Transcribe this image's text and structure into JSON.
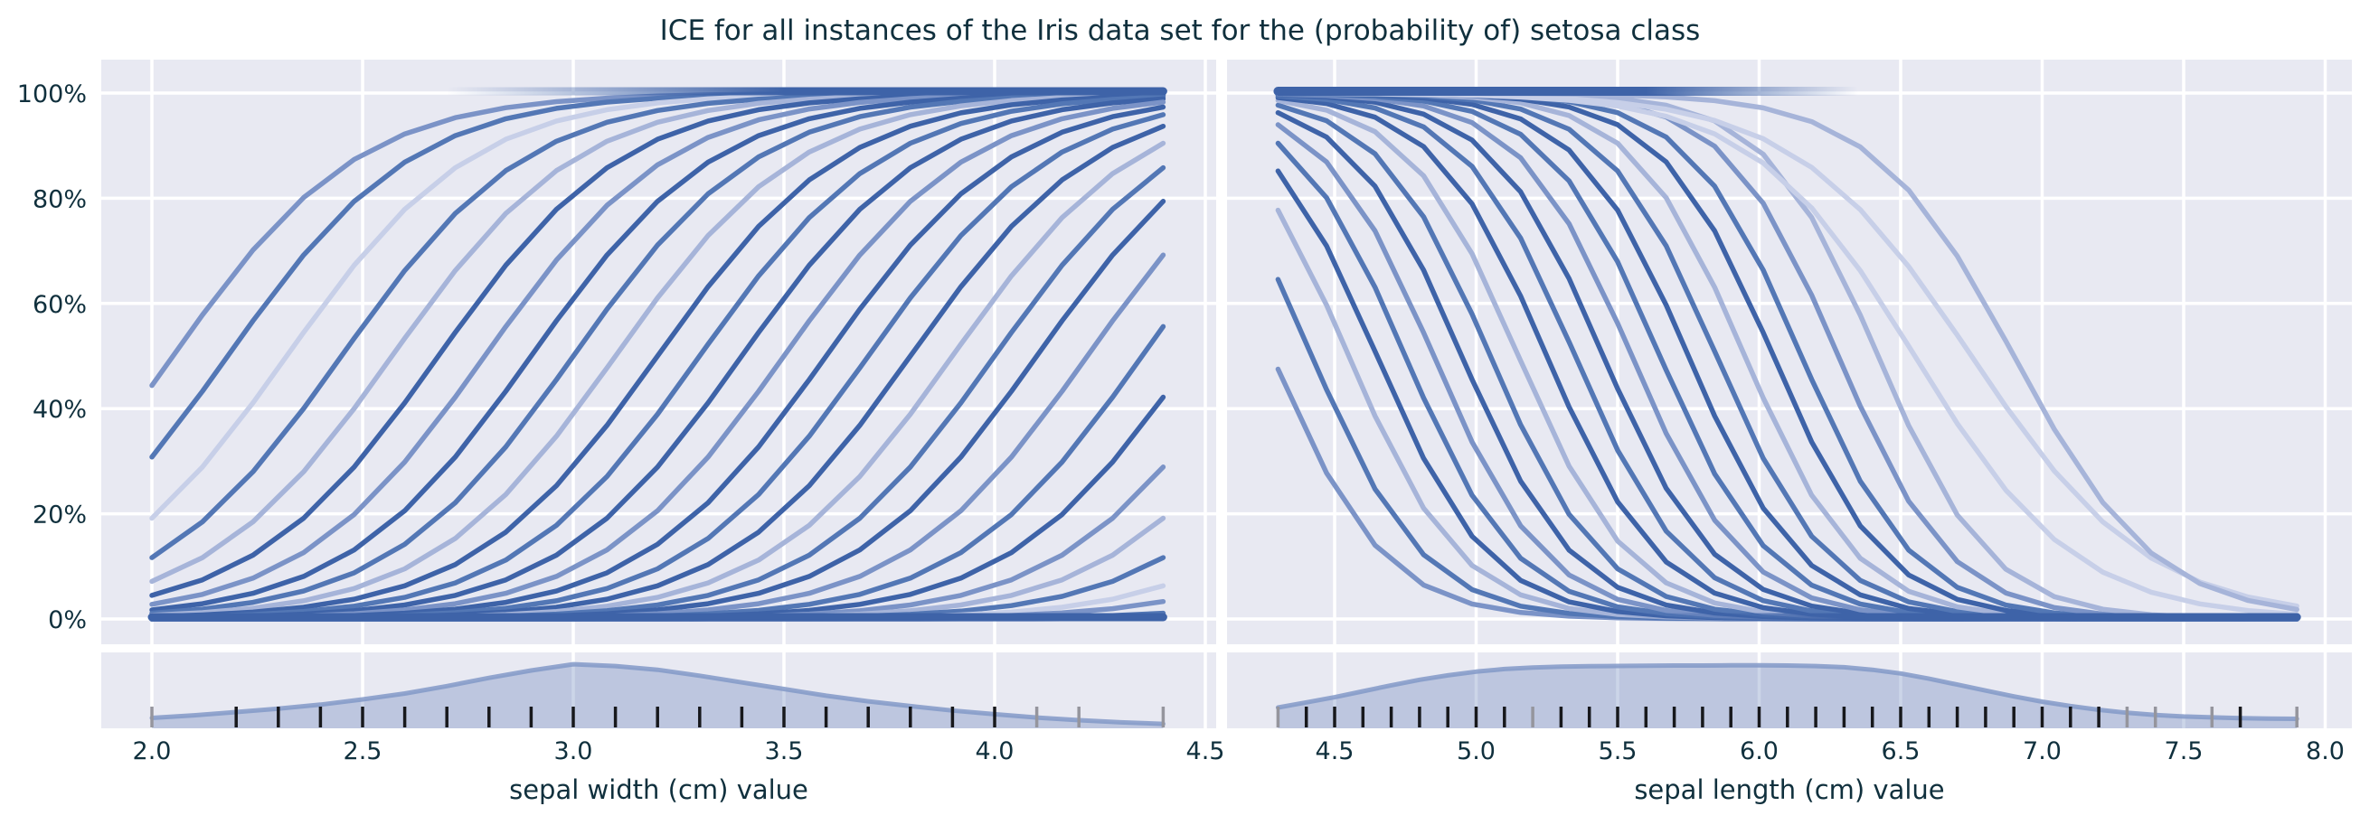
{
  "title": "ICE for all instances of the Iris data set for the (probability of) setosa class",
  "colors": {
    "figure_bg": "#ffffff",
    "panel_bg": "#e8e9f2",
    "grid": "#ffffff",
    "text": "#10303d",
    "line_palette": [
      "#3e63a8",
      "#5377b5",
      "#7b93c7",
      "#a6b4d9",
      "#c7cfe8"
    ],
    "saturation_band": "#3e63a8",
    "kde_fill": "#6e87be",
    "kde_fill_opacity": 0.35,
    "kde_stroke": "#8299c8",
    "kde_stroke_opacity": 0.85,
    "rug_dark": "#17181c",
    "rug_gray": "#95959d"
  },
  "y_axis": {
    "tick_labels": [
      "0%",
      "20%",
      "40%",
      "60%",
      "80%",
      "100%"
    ],
    "tick_values": [
      0,
      20,
      40,
      60,
      80,
      100
    ],
    "unit": "percent probability of setosa class"
  },
  "chart_data": [
    {
      "type": "line",
      "panel": "left",
      "xlabel": "sepal width (cm) value",
      "x_ticks": [
        2.0,
        2.5,
        3.0,
        3.5,
        4.0,
        4.5
      ],
      "x_tick_labels": [
        "2.0",
        "2.5",
        "3.0",
        "3.5",
        "4.0",
        "4.5"
      ],
      "xlim": [
        1.88,
        4.53
      ],
      "ylim_pct": [
        -4.8,
        104.8
      ],
      "data_x_range": [
        2.0,
        4.4
      ],
      "grid": true,
      "legend": "none",
      "curve_model": "p(x) = 100 / (1 + exp(-k*(x - x0)))",
      "k": 4.5,
      "samples": 20,
      "curves": [
        {
          "x0": 2.05,
          "shade": 2
        },
        {
          "x0": 2.18,
          "shade": 1
        },
        {
          "x0": 2.32,
          "shade": 4
        },
        {
          "x0": 2.45,
          "shade": 1
        },
        {
          "x0": 2.57,
          "shade": 3
        },
        {
          "x0": 2.68,
          "shade": 0
        },
        {
          "x0": 2.79,
          "shade": 2
        },
        {
          "x0": 2.9,
          "shade": 0
        },
        {
          "x0": 3.0,
          "shade": 1
        },
        {
          "x0": 3.1,
          "shade": 3
        },
        {
          "x0": 3.2,
          "shade": 0
        },
        {
          "x0": 3.3,
          "shade": 1
        },
        {
          "x0": 3.4,
          "shade": 0
        },
        {
          "x0": 3.5,
          "shade": 2
        },
        {
          "x0": 3.6,
          "shade": 0
        },
        {
          "x0": 3.7,
          "shade": 1
        },
        {
          "x0": 3.8,
          "shade": 0
        },
        {
          "x0": 3.9,
          "shade": 3
        },
        {
          "x0": 4.0,
          "shade": 1
        },
        {
          "x0": 4.1,
          "shade": 0
        },
        {
          "x0": 4.22,
          "shade": 2
        },
        {
          "x0": 4.35,
          "shade": 1
        },
        {
          "x0": 4.47,
          "shade": 0
        },
        {
          "x0": 4.6,
          "shade": 2
        },
        {
          "x0": 4.72,
          "shade": 3
        },
        {
          "x0": 4.85,
          "shade": 1
        },
        {
          "x0": 5.0,
          "shade": 4
        },
        {
          "x0": 5.15,
          "shade": 2
        },
        {
          "x0": 5.4,
          "shade": 1
        },
        {
          "x0": 5.9,
          "shade": 0
        }
      ],
      "saturation_bands": [
        {
          "p": 0,
          "x_start": 2.0,
          "solid_start": 2.0,
          "solid_end": 4.4,
          "x_end": 4.4,
          "width": 9
        },
        {
          "p": 100,
          "x_start": 2.7,
          "solid_start": 3.5,
          "solid_end": 4.4,
          "x_end": 4.4,
          "width": 9
        }
      ],
      "kde": {
        "x": [
          2.0,
          2.1,
          2.2,
          2.3,
          2.4,
          2.5,
          2.6,
          2.7,
          2.8,
          2.9,
          3.0,
          3.1,
          3.2,
          3.3,
          3.4,
          3.5,
          3.6,
          3.7,
          3.8,
          3.9,
          4.0,
          4.1,
          4.2,
          4.3,
          4.4
        ],
        "height": [
          0.14,
          0.175,
          0.22,
          0.265,
          0.32,
          0.39,
          0.47,
          0.57,
          0.68,
          0.78,
          0.865,
          0.84,
          0.79,
          0.71,
          0.62,
          0.53,
          0.44,
          0.365,
          0.3,
          0.24,
          0.19,
          0.145,
          0.11,
          0.08,
          0.06
        ]
      },
      "rug": {
        "values": [
          2.0,
          2.2,
          2.3,
          2.4,
          2.5,
          2.6,
          2.7,
          2.8,
          2.9,
          3.0,
          3.1,
          3.2,
          3.3,
          3.4,
          3.5,
          3.6,
          3.7,
          3.8,
          3.9,
          4.0,
          4.1,
          4.2,
          4.4
        ],
        "gray": [
          2.0,
          4.1,
          4.2,
          4.4
        ]
      }
    },
    {
      "type": "line",
      "panel": "right",
      "xlabel": "sepal length (cm) value",
      "x_ticks": [
        4.5,
        5.0,
        5.5,
        6.0,
        6.5,
        7.0,
        7.5,
        8.0
      ],
      "x_tick_labels": [
        "4.5",
        "5.0",
        "5.5",
        "6.0",
        "6.5",
        "7.0",
        "7.5",
        "8.0"
      ],
      "xlim": [
        4.12,
        8.07
      ],
      "ylim_pct": [
        -4.8,
        104.8
      ],
      "data_x_range": [
        4.3,
        7.9
      ],
      "grid": true,
      "legend": "none",
      "curve_model": "p(x) = 100 / (1 + exp(-k*(x - x0)))",
      "k": -5.0,
      "samples": 21,
      "curves": [
        {
          "x0": 4.28,
          "shade": 2
        },
        {
          "x0": 4.42,
          "shade": 1
        },
        {
          "x0": 4.55,
          "shade": 3
        },
        {
          "x0": 4.65,
          "shade": 0
        },
        {
          "x0": 4.75,
          "shade": 1
        },
        {
          "x0": 4.85,
          "shade": 2
        },
        {
          "x0": 4.95,
          "shade": 0
        },
        {
          "x0": 5.05,
          "shade": 1
        },
        {
          "x0": 5.15,
          "shade": 3
        },
        {
          "x0": 5.25,
          "shade": 0
        },
        {
          "x0": 5.35,
          "shade": 1
        },
        {
          "x0": 5.45,
          "shade": 0
        },
        {
          "x0": 5.55,
          "shade": 2
        },
        {
          "x0": 5.65,
          "shade": 1
        },
        {
          "x0": 5.75,
          "shade": 0
        },
        {
          "x0": 5.85,
          "shade": 1
        },
        {
          "x0": 5.95,
          "shade": 3
        },
        {
          "x0": 6.05,
          "shade": 0
        },
        {
          "x0": 6.15,
          "shade": 1
        },
        {
          "x0": 6.28,
          "shade": 2
        },
        {
          "x0": 6.42,
          "shade": 3
        },
        {
          "x0": 6.55,
          "shade": 4,
          "k": -3.5
        },
        {
          "x0": 6.75,
          "shade": 4,
          "k": -3.2
        },
        {
          "x0": 6.9,
          "shade": 3,
          "k": -4.0
        }
      ],
      "saturation_bands": [
        {
          "p": 100,
          "x_start": 4.3,
          "solid_start": 4.3,
          "solid_end": 5.6,
          "x_end": 6.35,
          "width": 10
        },
        {
          "p": 0,
          "x_start": 5.5,
          "solid_start": 6.3,
          "solid_end": 7.9,
          "x_end": 7.9,
          "width": 9
        }
      ],
      "kde": {
        "x": [
          4.3,
          4.4,
          4.5,
          4.6,
          4.7,
          4.8,
          4.9,
          5.0,
          5.1,
          5.2,
          5.3,
          5.4,
          5.5,
          5.6,
          5.7,
          5.8,
          5.9,
          6.0,
          6.1,
          6.2,
          6.3,
          6.4,
          6.5,
          6.6,
          6.7,
          6.8,
          6.9,
          7.0,
          7.1,
          7.2,
          7.3,
          7.4,
          7.5,
          7.6,
          7.7,
          7.8,
          7.9
        ],
        "height": [
          0.28,
          0.35,
          0.42,
          0.5,
          0.58,
          0.655,
          0.715,
          0.765,
          0.8,
          0.82,
          0.832,
          0.838,
          0.842,
          0.845,
          0.847,
          0.848,
          0.85,
          0.85,
          0.848,
          0.84,
          0.825,
          0.79,
          0.74,
          0.67,
          0.59,
          0.51,
          0.43,
          0.36,
          0.3,
          0.25,
          0.21,
          0.18,
          0.16,
          0.147,
          0.138,
          0.132,
          0.128
        ]
      },
      "rug": {
        "values": [
          4.3,
          4.4,
          4.5,
          4.6,
          4.7,
          4.8,
          4.9,
          5.0,
          5.1,
          5.2,
          5.3,
          5.4,
          5.5,
          5.6,
          5.7,
          5.8,
          5.9,
          6.0,
          6.1,
          6.2,
          6.3,
          6.4,
          6.5,
          6.6,
          6.7,
          6.8,
          6.9,
          7.0,
          7.1,
          7.2,
          7.3,
          7.4,
          7.6,
          7.7,
          7.9
        ],
        "gray": [
          4.3,
          5.2,
          7.3,
          7.4,
          7.6,
          7.9
        ]
      }
    }
  ]
}
